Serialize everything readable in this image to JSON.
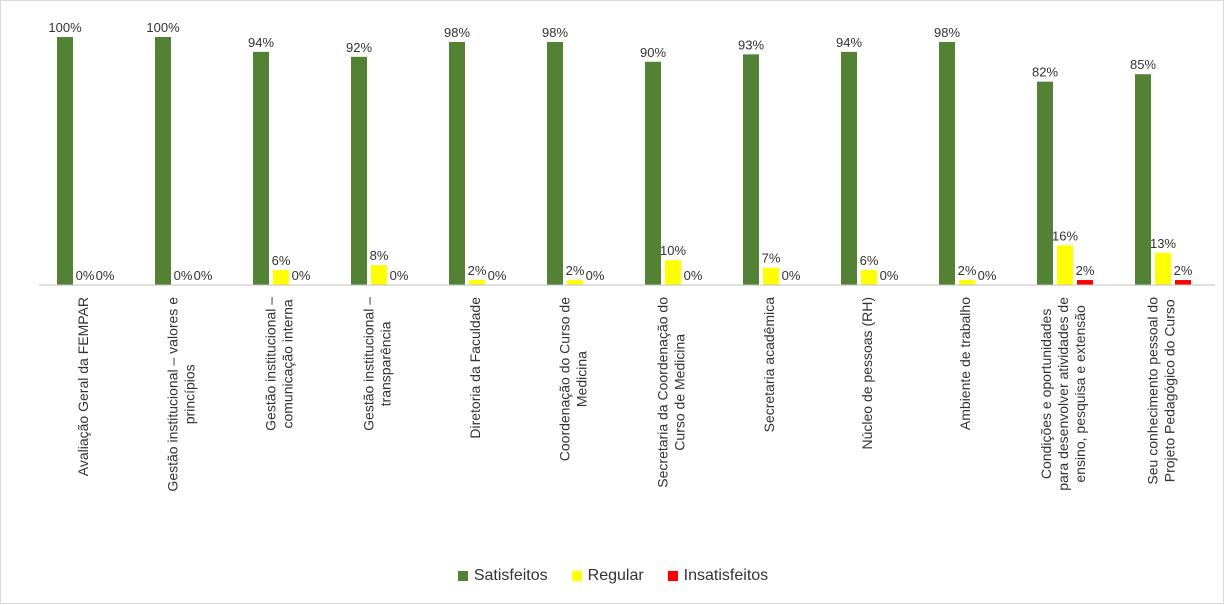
{
  "chart_data": {
    "type": "bar",
    "categories": [
      "Avaliação Geral da FEMPAR",
      "Gestão institucional – valores e princípios",
      "Gestão institucional – comunicação interna",
      "Gestão institucional – transparência",
      "Diretoria da Faculdade",
      "Coordenação do Curso de Medicina",
      "Secretaria da Coordenação do Curso de Medicina",
      "Secretaria acadêmica",
      "Núcleo de pessoas (RH)",
      "Ambiente de trabalho",
      "Condições e oportunidades para desenvolver atividades de ensino, pesquisa e extensão",
      "Seu conhecimento pessoal do Projeto Pedagógico do Curso"
    ],
    "category_lines": [
      [
        "Avaliação Geral da FEMPAR"
      ],
      [
        "Gestão institucional – valores e",
        "princípios"
      ],
      [
        "Gestão institucional –",
        "comunicação interna"
      ],
      [
        "Gestão institucional –",
        "transparência"
      ],
      [
        "Diretoria da Faculdade"
      ],
      [
        "Coordenação do Curso de",
        "Medicina"
      ],
      [
        "Secretaria da Coordenação do",
        "Curso de Medicina"
      ],
      [
        "Secretaria acadêmica"
      ],
      [
        "Núcleo de pessoas (RH)"
      ],
      [
        "Ambiente de trabalho"
      ],
      [
        "Condições e oportunidades",
        "para desenvolver atividades de",
        "ensino, pesquisa e extensão"
      ],
      [
        "Seu conhecimento pessoal do",
        "Projeto Pedagógico do Curso"
      ]
    ],
    "series": [
      {
        "name": "Satisfeitos",
        "color": "#548235",
        "values": [
          100,
          100,
          94,
          92,
          98,
          98,
          90,
          93,
          94,
          98,
          82,
          85
        ],
        "labels": [
          "100%",
          "100%",
          "94%",
          "92%",
          "98%",
          "98%",
          "90%",
          "93%",
          "94%",
          "98%",
          "82%",
          "85%"
        ]
      },
      {
        "name": "Regular",
        "color": "#ffff00",
        "values": [
          0,
          0,
          6,
          8,
          2,
          2,
          10,
          7,
          6,
          2,
          16,
          13
        ],
        "labels": [
          "0%",
          "0%",
          "6%",
          "8%",
          "2%",
          "2%",
          "10%",
          "7%",
          "6%",
          "2%",
          "16%",
          "13%"
        ]
      },
      {
        "name": "Insatisfeitos",
        "color": "#ff0000",
        "values": [
          0,
          0,
          0,
          0,
          0,
          0,
          0,
          0,
          0,
          0,
          2,
          2
        ],
        "labels": [
          "0%",
          "0%",
          "0%",
          "0%",
          "0%",
          "0%",
          "0%",
          "0%",
          "0%",
          "0%",
          "2%",
          "2%"
        ]
      }
    ],
    "ylim": [
      0,
      100
    ],
    "grid": false,
    "legend_position": "bottom"
  }
}
